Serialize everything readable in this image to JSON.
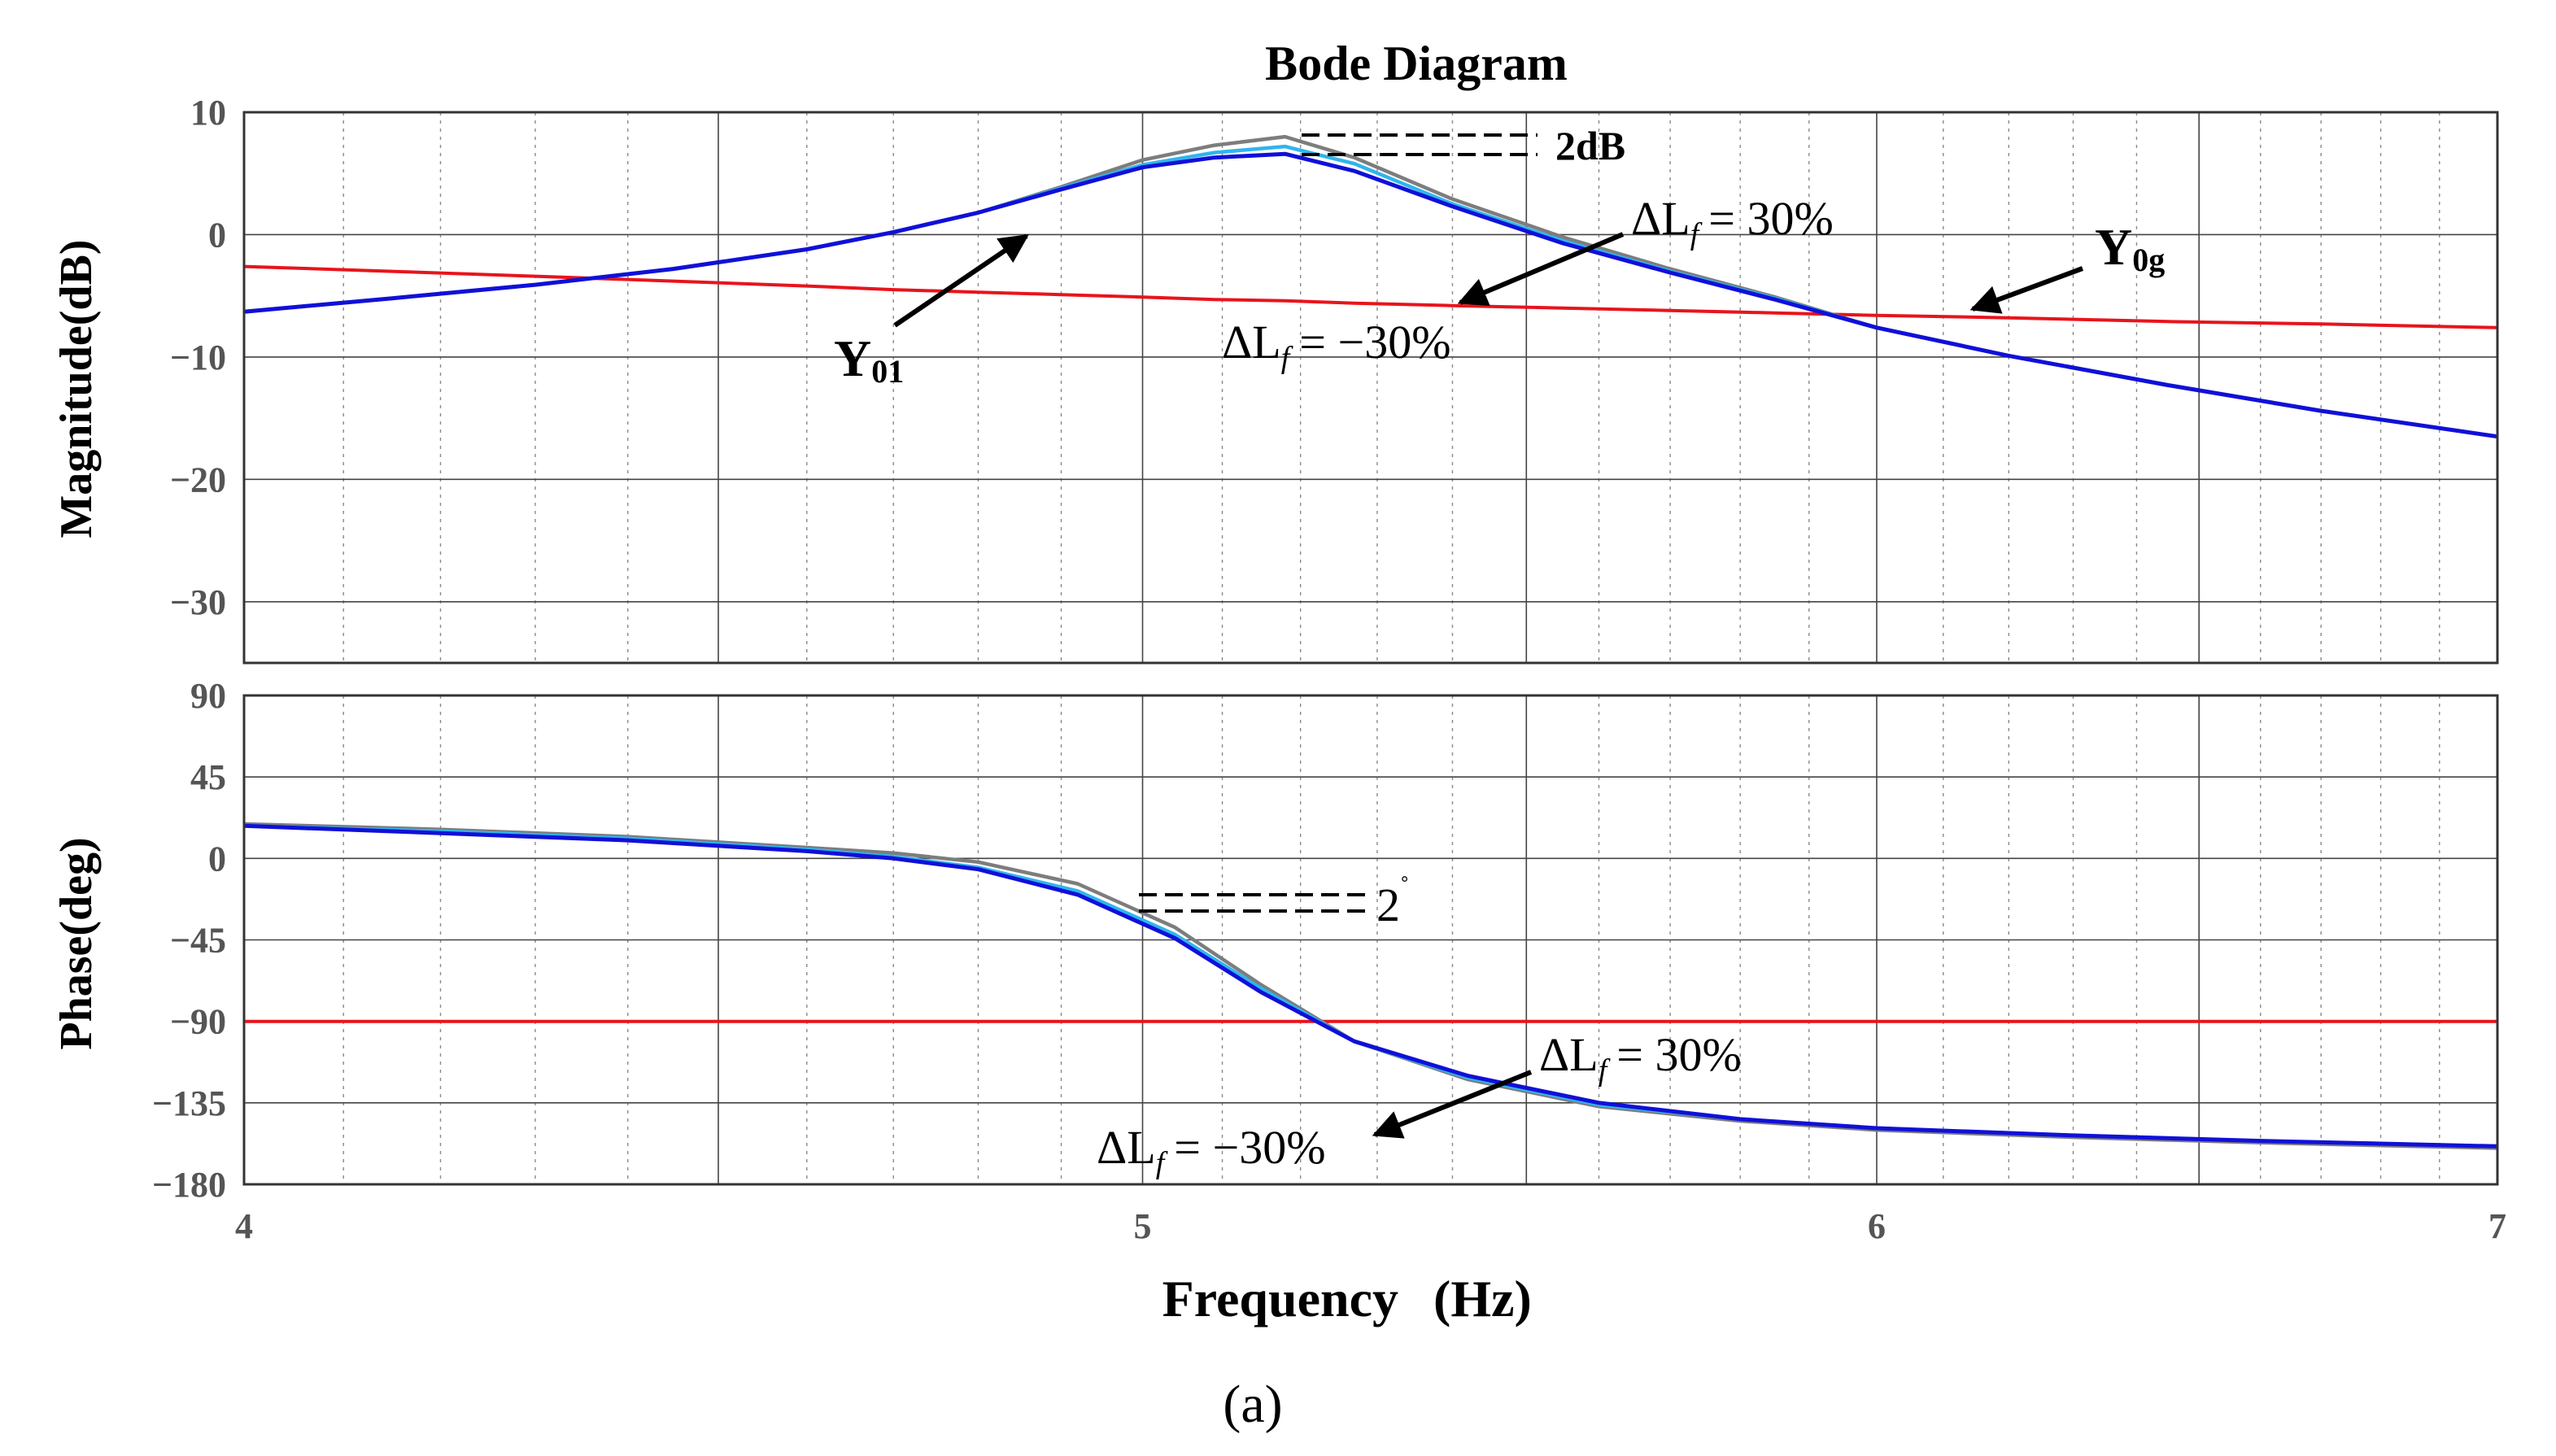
{
  "figure": {
    "title": "Bode Diagram",
    "caption": "(a)",
    "xlabel": "Frequency",
    "xunit": "(Hz)",
    "colors": {
      "Y0g": "#e8141c",
      "Y01": "#1010d8",
      "lf_plus_30": "#7d7d7d",
      "lf_minus_30": "#30b4ee",
      "annotation": "#000000"
    }
  },
  "chart_data": [
    {
      "type": "line",
      "panel": "magnitude",
      "title": "Bode Diagram",
      "xlabel": "Frequency  (Hz)",
      "ylabel": "Magnitude(dB)",
      "xscale": "log",
      "xlim": [
        4,
        7
      ],
      "ylim": [
        -35,
        10
      ],
      "xticks": [
        4,
        5,
        6,
        7
      ],
      "yticks": [
        10,
        0,
        -10,
        -20,
        -30
      ],
      "ytick_labels": [
        "10",
        "0",
        "−10",
        "−20",
        "−30"
      ],
      "grid": true,
      "x": [
        4.0,
        4.15,
        4.3,
        4.45,
        4.6,
        4.7,
        4.8,
        4.9,
        5.0,
        5.09,
        5.18,
        5.27,
        5.4,
        5.55,
        5.7,
        5.85,
        6.0,
        6.2,
        6.45,
        6.7,
        7.0
      ],
      "series": [
        {
          "name": "Y0g",
          "color": "#e8141c",
          "values": [
            -2.6,
            -3.0,
            -3.4,
            -3.8,
            -4.2,
            -4.5,
            -4.7,
            -4.9,
            -5.1,
            -5.3,
            -5.4,
            -5.6,
            -5.8,
            -6.0,
            -6.2,
            -6.4,
            -6.6,
            -6.8,
            -7.1,
            -7.3,
            -7.6
          ]
        },
        {
          "name": "ΔLf = 30%",
          "color": "#7d7d7d",
          "values": [
            -6.3,
            -5.2,
            -4.1,
            -2.8,
            -1.2,
            0.2,
            1.8,
            3.9,
            6.1,
            7.3,
            8.0,
            6.3,
            2.9,
            -0.2,
            -2.8,
            -5.1,
            -7.6,
            -9.9,
            -12.3,
            -14.4,
            -16.5
          ]
        },
        {
          "name": "ΔLf = −30%",
          "color": "#30b4ee",
          "values": [
            -6.3,
            -5.2,
            -4.1,
            -2.8,
            -1.2,
            0.2,
            1.8,
            3.8,
            5.7,
            6.7,
            7.2,
            5.8,
            2.5,
            -0.5,
            -3.0,
            -5.2,
            -7.6,
            -9.9,
            -12.3,
            -14.4,
            -16.5
          ]
        },
        {
          "name": "Y01",
          "color": "#1010d8",
          "values": [
            -6.3,
            -5.2,
            -4.1,
            -2.8,
            -1.2,
            0.2,
            1.8,
            3.7,
            5.5,
            6.3,
            6.6,
            5.2,
            2.3,
            -0.7,
            -3.1,
            -5.3,
            -7.6,
            -9.9,
            -12.3,
            -14.4,
            -16.5
          ]
        }
      ],
      "annotations": [
        {
          "text": "2dB"
        },
        {
          "label": "Y",
          "sub": "01"
        },
        {
          "label": "Y",
          "sub": "0g"
        },
        {
          "lhs": "ΔL",
          "sub": "f",
          "rhs": "= 30%"
        },
        {
          "lhs": "ΔL",
          "sub": "f",
          "rhs": "= −30%"
        }
      ]
    },
    {
      "type": "line",
      "panel": "phase",
      "xlabel": "Frequency  (Hz)",
      "ylabel": "Phase(deg)",
      "xscale": "log",
      "xlim": [
        4,
        7
      ],
      "ylim": [
        -180,
        90
      ],
      "xticks": [
        4,
        5,
        6,
        7
      ],
      "xtick_labels": [
        "4",
        "5",
        "6",
        "7"
      ],
      "yticks": [
        90,
        45,
        0,
        -45,
        -90,
        -135,
        -180
      ],
      "ytick_labels": [
        "90",
        "45",
        "0",
        "−45",
        "−90",
        "−135",
        "−180"
      ],
      "grid": true,
      "x": [
        4.0,
        4.2,
        4.4,
        4.6,
        4.7,
        4.8,
        4.92,
        5.04,
        5.15,
        5.27,
        5.42,
        5.6,
        5.8,
        6.0,
        6.3,
        6.6,
        7.0
      ],
      "series": [
        {
          "name": "Y0g",
          "color": "#e8141c",
          "values": [
            -90,
            -90,
            -90,
            -90,
            -90,
            -90,
            -90,
            -90,
            -90,
            -90,
            -90,
            -90,
            -90,
            -90,
            -90,
            -90,
            -90
          ]
        },
        {
          "name": "ΔLf = 30%",
          "color": "#7d7d7d",
          "values": [
            19,
            16,
            12,
            6,
            3,
            -2,
            -14,
            -38,
            -70,
            -101,
            -122,
            -137,
            -145,
            -150,
            -154,
            -157,
            -160
          ]
        },
        {
          "name": "ΔLf = −30%",
          "color": "#30b4ee",
          "values": [
            18,
            15,
            11,
            5,
            1,
            -5,
            -18,
            -42,
            -72,
            -101,
            -121,
            -136,
            -144,
            -149,
            -153,
            -156,
            -159
          ]
        },
        {
          "name": "Y01",
          "color": "#1010d8",
          "values": [
            18,
            14,
            10,
            4,
            0,
            -6,
            -20,
            -44,
            -74,
            -101,
            -120,
            -135,
            -144,
            -149,
            -153,
            -156,
            -159
          ]
        }
      ],
      "annotations": [
        {
          "text": "2",
          "superscript": "˚"
        },
        {
          "lhs": "ΔL",
          "sub": "f",
          "rhs": "= 30%"
        },
        {
          "lhs": "ΔL",
          "sub": "f",
          "rhs": "= −30%"
        }
      ]
    }
  ]
}
